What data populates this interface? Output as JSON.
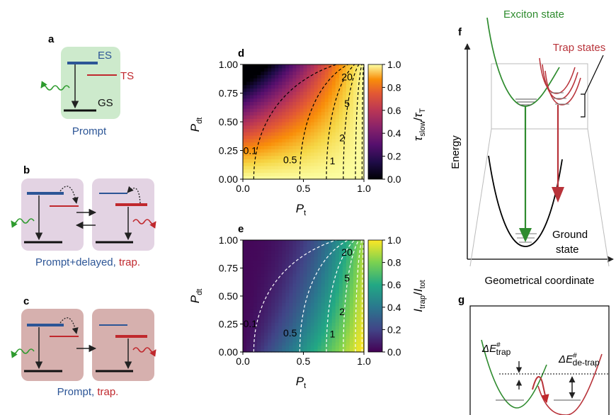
{
  "panels": {
    "a": {
      "letter": "a",
      "es_label": "ES",
      "ts_label": "TS",
      "gs_label": "GS",
      "caption": "Prompt",
      "colors": {
        "box": "#cdeacc",
        "es": "#2c5596",
        "ts": "#c0282d",
        "emit": "#2e9b2e"
      }
    },
    "b": {
      "letter": "b",
      "caption_part1": "Prompt+delayed, ",
      "caption_part2": "trap.",
      "colors": {
        "box": "#e3d3e3",
        "level": "#2c5596",
        "trap": "#c0282d"
      }
    },
    "c": {
      "letter": "c",
      "caption_part1": "Prompt, ",
      "caption_part2": "trap.",
      "colors": {
        "box": "#d6b0ae",
        "level": "#2c5596",
        "trap": "#c0282d"
      }
    },
    "d": {
      "letter": "d",
      "xlabel_main": "P",
      "xlabel_sub": "t",
      "ylabel_main": "P",
      "ylabel_sub": "dt",
      "cbar_label_num": "τ",
      "cbar_label_num_sub": "slow",
      "cbar_label_sep": "/",
      "cbar_label_den": "τ",
      "cbar_label_den_sub": "T",
      "colormap": "inferno"
    },
    "e": {
      "letter": "e",
      "xlabel_main": "P",
      "xlabel_sub": "t",
      "ylabel_main": "P",
      "ylabel_sub": "dt",
      "cbar_label_num": "I",
      "cbar_label_num_sub": "trap",
      "cbar_label_sep": "/",
      "cbar_label_den": "I",
      "cbar_label_den_sub": "tot",
      "colormap": "viridis"
    },
    "f": {
      "letter": "f",
      "exciton_label": "Exciton state",
      "trap_label": "Trap states",
      "energy_label": "Energy",
      "ground_label_1": "Ground",
      "ground_label_2": "state",
      "xaxis_label": "Geometrical coordinate",
      "colors": {
        "exciton": "#2e8b2e",
        "trap": "#b8333a",
        "ground": "#000000"
      }
    },
    "g": {
      "letter": "g",
      "trap_barrier_sym": "ΔE",
      "trap_barrier_sup": "#",
      "trap_barrier_sub": "trap",
      "detrap_barrier_sym": "ΔE",
      "detrap_barrier_sup": "#",
      "detrap_barrier_sub": "de-trap"
    }
  },
  "chart_data": [
    {
      "type": "heatmap",
      "panel": "d",
      "xlim": [
        0,
        1
      ],
      "ylim": [
        0,
        1
      ],
      "xticks": [
        "0.0",
        "0.5",
        "1.0"
      ],
      "yticks": [
        "0.00",
        "0.25",
        "0.50",
        "0.75",
        "1.00"
      ],
      "colorbar": {
        "range": [
          0,
          1
        ],
        "ticks": [
          "0.0",
          "0.2",
          "0.4",
          "0.6",
          "0.8",
          "1.0"
        ]
      },
      "contours": [
        {
          "label": "0.1",
          "x_at_y0": 0.09
        },
        {
          "label": "0.5",
          "x_at_y0": 0.47
        },
        {
          "label": "1",
          "x_at_y0": 0.69
        },
        {
          "label": "2",
          "x_at_y0": 0.83
        },
        {
          "label": "5",
          "x_at_y0": 0.93
        },
        {
          "label": "20",
          "x_at_y0": 0.985
        }
      ]
    },
    {
      "type": "heatmap",
      "panel": "e",
      "xlim": [
        0,
        1
      ],
      "ylim": [
        0,
        1
      ],
      "xticks": [
        "0.0",
        "0.5",
        "1.0"
      ],
      "yticks": [
        "0.00",
        "0.25",
        "0.50",
        "0.75",
        "1.00"
      ],
      "colorbar": {
        "range": [
          0,
          1
        ],
        "ticks": [
          "0.0",
          "0.2",
          "0.4",
          "0.6",
          "0.8",
          "1.0"
        ]
      },
      "contours": [
        {
          "label": "0.1",
          "x_at_y0": 0.09
        },
        {
          "label": "0.5",
          "x_at_y0": 0.47
        },
        {
          "label": "1",
          "x_at_y0": 0.69
        },
        {
          "label": "2",
          "x_at_y0": 0.83
        },
        {
          "label": "5",
          "x_at_y0": 0.93
        },
        {
          "label": "20",
          "x_at_y0": 0.985
        }
      ]
    }
  ]
}
